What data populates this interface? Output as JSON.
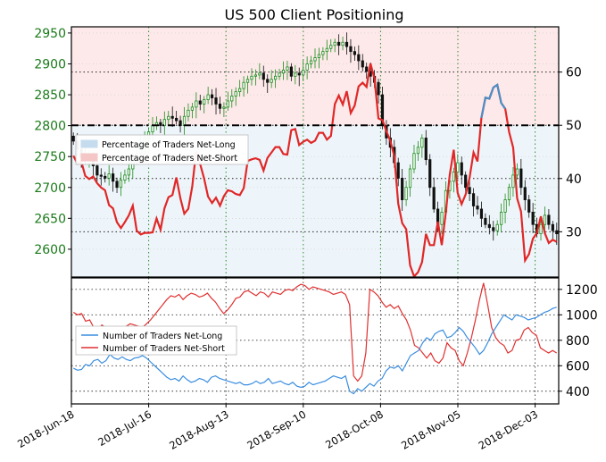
{
  "chart_data": [
    {
      "type": "candlestick",
      "title": "US 500 Client Positioning",
      "y_left": {
        "ticks": [
          2600,
          2650,
          2700,
          2750,
          2800,
          2850,
          2900,
          2950
        ],
        "range": [
          2555,
          2960
        ],
        "color": "#1a7a1a"
      },
      "y_right": {
        "ticks": [
          30,
          40,
          50,
          60
        ],
        "range": [
          21.5,
          68.5
        ]
      },
      "ref_line": 50,
      "x_ticks": [
        "2018-Jun-18",
        "2018-Jul-16",
        "2018-Aug-13",
        "2018-Sep-10",
        "2018-Oct-08",
        "2018-Nov-05",
        "2018-Dec-03"
      ],
      "price_close": [
        2775,
        2762,
        2748,
        2745,
        2750,
        2735,
        2720,
        2718,
        2715,
        2722,
        2710,
        2700,
        2712,
        2720,
        2730,
        2745,
        2755,
        2770,
        2780,
        2790,
        2800,
        2805,
        2800,
        2810,
        2815,
        2812,
        2808,
        2800,
        2815,
        2825,
        2830,
        2840,
        2835,
        2842,
        2850,
        2845,
        2835,
        2828,
        2830,
        2840,
        2848,
        2855,
        2860,
        2870,
        2875,
        2880,
        2882,
        2885,
        2875,
        2870,
        2875,
        2880,
        2885,
        2890,
        2895,
        2880,
        2885,
        2882,
        2890,
        2900,
        2905,
        2910,
        2915,
        2920,
        2925,
        2930,
        2935,
        2930,
        2935,
        2928,
        2920,
        2915,
        2905,
        2895,
        2888,
        2880,
        2870,
        2850,
        2800,
        2780,
        2765,
        2740,
        2715,
        2680,
        2700,
        2730,
        2755,
        2765,
        2780,
        2745,
        2700,
        2665,
        2640,
        2660,
        2695,
        2710,
        2725,
        2740,
        2720,
        2700,
        2690,
        2670,
        2665,
        2650,
        2640,
        2635,
        2630,
        2640,
        2660,
        2680,
        2700,
        2720,
        2730,
        2700,
        2680,
        2660,
        2640,
        2625,
        2640,
        2655,
        2640,
        2630,
        2625
      ],
      "series": [
        {
          "name": "Percentage of Traders Net-Long",
          "color": "#4a90c8",
          "fill": "#c5dcee"
        },
        {
          "name": "Percentage of Traders Net-Short",
          "color": "#e02828",
          "fill": "#f4c6c6"
        }
      ],
      "net_long_pct": [
        27.8,
        26.3,
        26.7,
        24.0,
        23.4,
        23.9,
        22.6,
        21.8,
        21.3,
        18.5,
        17.9,
        15.3,
        14.2,
        15.3,
        16.6,
        18.4,
        13.7,
        13.0,
        13.3,
        13.3,
        13.4,
        16.0,
        13.9,
        17.9,
        20.0,
        20.4,
        23.7,
        19.8,
        16.9,
        17.8,
        22.0,
        28.6,
        26.2,
        23.5,
        20.1,
        18.9,
        19.9,
        18.4,
        20.2,
        21.3,
        21.1,
        20.6,
        20.4,
        21.7,
        26.8,
        27.1,
        27.3,
        27.0,
        25.0,
        27.4,
        28.4,
        29.4,
        29.4,
        28.1,
        28.0,
        32.6,
        32.8,
        29.8,
        30.4,
        30.8,
        30.2,
        30.6,
        32.1,
        32.1,
        30.8,
        31.5,
        37.5,
        39.1,
        37.4,
        39.9,
        35.8,
        37.2,
        40.8,
        41.5,
        40.7,
        45.1,
        42.3,
        34.8,
        34.5,
        32.4,
        30.6,
        27.7,
        18.8,
        15.1,
        14.0,
        7.2,
        5.1,
        5.9,
        7.8,
        13.1,
        11.0,
        11.0,
        15.4,
        11.0,
        17.1,
        24.2,
        28.9,
        20.8,
        18.7,
        20.5,
        23.6,
        28.4,
        26.7,
        34.9,
        38.7,
        38.5,
        40.6,
        41.1,
        37.7,
        36.6,
        32.2,
        29.3,
        19.8,
        17.3,
        8.1,
        9.3,
        12.2,
        13.3,
        16.4,
        13.2,
        11.4,
        12.0,
        11.6
      ],
      "net_long_pct_blue_visible_from_index": 88
    },
    {
      "type": "line",
      "y_right": {
        "ticks": [
          400,
          600,
          800,
          1000,
          1200
        ],
        "range": [
          300,
          1290
        ]
      },
      "series": [
        {
          "name": "Number of Traders Net-Long",
          "color": "#3a8ee0"
        },
        {
          "name": "Number of Traders Net-Short",
          "color": "#e03030"
        }
      ],
      "net_long_count": [
        580,
        565,
        570,
        610,
        600,
        640,
        650,
        620,
        640,
        690,
        660,
        650,
        670,
        650,
        640,
        660,
        665,
        680,
        660,
        630,
        600,
        570,
        540,
        510,
        490,
        500,
        480,
        520,
        490,
        470,
        480,
        500,
        490,
        470,
        510,
        520,
        500,
        490,
        480,
        470,
        460,
        470,
        450,
        450,
        460,
        480,
        460,
        470,
        500,
        460,
        470,
        480,
        460,
        450,
        470,
        440,
        430,
        440,
        470,
        450,
        460,
        470,
        480,
        500,
        520,
        510,
        500,
        520,
        400,
        380,
        420,
        400,
        430,
        460,
        440,
        480,
        500,
        560,
        590,
        580,
        600,
        560,
        620,
        680,
        700,
        720,
        780,
        820,
        800,
        850,
        870,
        880,
        820,
        830,
        860,
        900,
        870,
        820,
        780,
        740,
        690,
        720,
        780,
        850,
        900,
        950,
        1000,
        980,
        960,
        1000,
        990,
        980,
        960,
        970,
        980,
        1000,
        1020,
        1030,
        1050,
        1060
      ],
      "net_short_count": [
        1020,
        1000,
        1010,
        950,
        960,
        900,
        880,
        920,
        900,
        840,
        870,
        900,
        880,
        910,
        930,
        920,
        910,
        900,
        930,
        960,
        1000,
        1040,
        1080,
        1120,
        1150,
        1140,
        1160,
        1120,
        1150,
        1170,
        1160,
        1140,
        1150,
        1170,
        1130,
        1100,
        1050,
        1010,
        1040,
        1080,
        1130,
        1140,
        1180,
        1190,
        1170,
        1150,
        1180,
        1170,
        1140,
        1180,
        1170,
        1160,
        1190,
        1200,
        1190,
        1220,
        1240,
        1230,
        1200,
        1220,
        1210,
        1200,
        1190,
        1180,
        1160,
        1170,
        1180,
        1160,
        1080,
        520,
        480,
        520,
        700,
        1200,
        1180,
        1150,
        1100,
        1060,
        1080,
        1050,
        1070,
        1010,
        960,
        880,
        760,
        740,
        700,
        660,
        700,
        640,
        620,
        660,
        780,
        740,
        720,
        640,
        600,
        700,
        820,
        960,
        1120,
        1250,
        1080,
        900,
        820,
        780,
        760,
        700,
        720,
        800,
        810,
        880,
        900,
        860,
        840,
        740,
        720,
        700,
        720,
        700
      ]
    }
  ]
}
